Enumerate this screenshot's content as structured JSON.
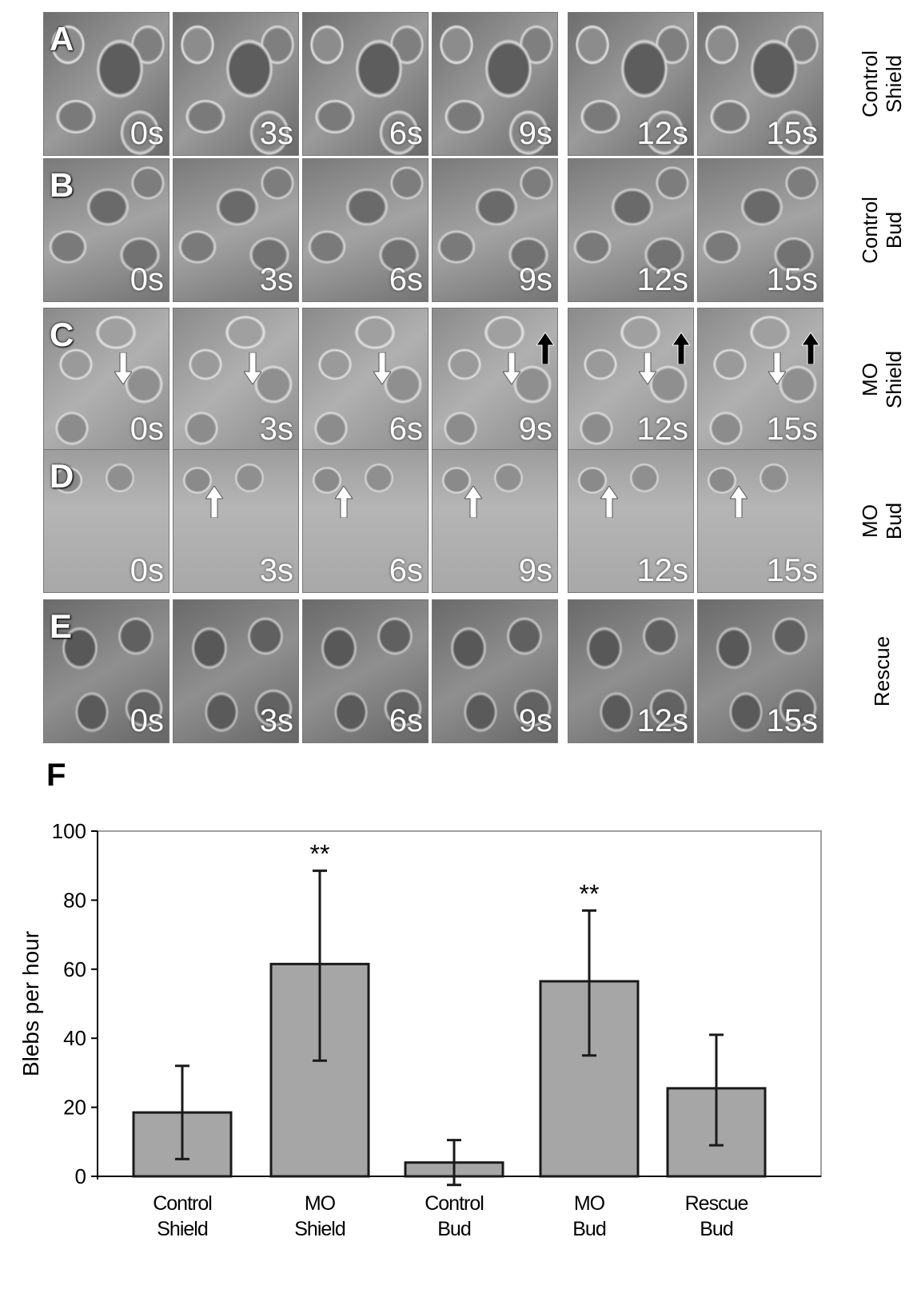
{
  "rows": [
    {
      "letter": "A",
      "label": "Control\nShield",
      "times": [
        "0s",
        "3s",
        "6s",
        "9s",
        "12s",
        "15s"
      ],
      "arrows": []
    },
    {
      "letter": "B",
      "label": "Control\nBud",
      "times": [
        "0s",
        "3s",
        "6s",
        "9s",
        "12s",
        "15s"
      ],
      "arrows": []
    },
    {
      "letter": "C",
      "label": "MO\nShield",
      "times": [
        "0s",
        "3s",
        "6s",
        "9s",
        "12s",
        "15s"
      ],
      "arrows": [
        {
          "frame": 0,
          "color": "white",
          "dir": "down"
        },
        {
          "frame": 1,
          "color": "white",
          "dir": "down"
        },
        {
          "frame": 2,
          "color": "white",
          "dir": "down"
        },
        {
          "frame": 3,
          "color": "white",
          "dir": "down"
        },
        {
          "frame": 3,
          "color": "black",
          "dir": "up"
        },
        {
          "frame": 4,
          "color": "white",
          "dir": "down"
        },
        {
          "frame": 4,
          "color": "black",
          "dir": "up"
        },
        {
          "frame": 5,
          "color": "white",
          "dir": "down"
        },
        {
          "frame": 5,
          "color": "black",
          "dir": "up"
        }
      ]
    },
    {
      "letter": "D",
      "label": "MO\nBud",
      "times": [
        "0s",
        "3s",
        "6s",
        "9s",
        "12s",
        "15s"
      ],
      "arrows": [
        {
          "frame": 1,
          "color": "white",
          "dir": "up"
        },
        {
          "frame": 2,
          "color": "white",
          "dir": "up"
        },
        {
          "frame": 3,
          "color": "white",
          "dir": "up"
        },
        {
          "frame": 4,
          "color": "white",
          "dir": "up"
        },
        {
          "frame": 5,
          "color": "white",
          "dir": "up"
        }
      ]
    },
    {
      "letter": "E",
      "label": "Rescue",
      "times": [
        "0s",
        "3s",
        "6s",
        "9s",
        "12s",
        "15s"
      ],
      "arrows": []
    }
  ],
  "panel_f_letter": "F",
  "chart_data": {
    "type": "bar",
    "categories": [
      [
        "Control",
        "Shield"
      ],
      [
        "MO",
        "Shield"
      ],
      [
        "Control",
        "Bud"
      ],
      [
        "MO",
        "Bud"
      ],
      [
        "Rescue",
        "Bud"
      ]
    ],
    "values": [
      18.5,
      61.5,
      4,
      56.5,
      25.5
    ],
    "error": [
      [
        5,
        32
      ],
      [
        33.5,
        88.5
      ],
      [
        -2.5,
        10.5
      ],
      [
        35,
        77
      ],
      [
        9,
        41
      ]
    ],
    "annotations": [
      "",
      "**",
      "",
      "**",
      ""
    ],
    "ylabel": "Blebs per hour",
    "xlabel": "",
    "ylim": [
      0,
      100
    ],
    "yticks": [
      0,
      20,
      40,
      60,
      80,
      100
    ],
    "bar_color": "#a6a6a6",
    "grid": false
  },
  "colors": {
    "frame_border": "#777777",
    "axis": "#000000",
    "plot_border": "#a0a0a0"
  }
}
